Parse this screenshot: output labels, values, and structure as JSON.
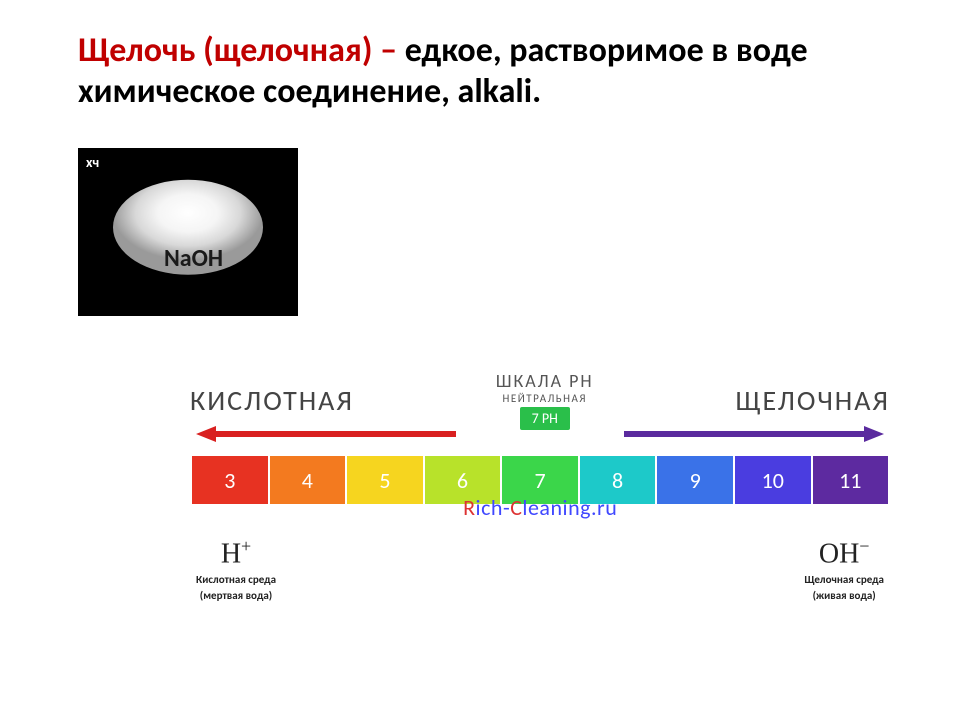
{
  "title": {
    "red_part": "Щелочь (щелочная) – ",
    "black_part": "едкое, растворимое в воде химическое соединение, alkali.",
    "red_color": "#c00000",
    "black_color": "#000000"
  },
  "naoh_image": {
    "corner_tag": "хч",
    "formula": "NaOH"
  },
  "ph_chart": {
    "type": "infographic",
    "header": "ШКАЛА PH",
    "acidic_label": "КИСЛОТНАЯ",
    "alkaline_label": "ЩЕЛОЧНАЯ",
    "neutral_label": "НЕЙТРАЛЬНАЯ",
    "neutral_badge": "7 PH",
    "neutral_badge_bg": "#2abf4a",
    "arrow_acidic_color": "#d92020",
    "arrow_alkaline_color": "#5a2a9e",
    "cells": [
      {
        "value": "3",
        "color": "#e73222"
      },
      {
        "value": "4",
        "color": "#f37a1f"
      },
      {
        "value": "5",
        "color": "#f6d51f"
      },
      {
        "value": "6",
        "color": "#b8e22a"
      },
      {
        "value": "7",
        "color": "#3bd64a"
      },
      {
        "value": "8",
        "color": "#1dc9c9"
      },
      {
        "value": "9",
        "color": "#3a72e8"
      },
      {
        "value": "10",
        "color": "#4a3de0"
      },
      {
        "value": "11",
        "color": "#5d2aa0"
      }
    ],
    "ions": {
      "left": {
        "formula": "H",
        "charge": "+",
        "desc_line1": "Кислотная среда",
        "desc_line2": "(мертвая вода)"
      },
      "right": {
        "formula": "OH",
        "charge": "−",
        "desc_line1": "Щелочная среда",
        "desc_line2": "(живая вода)"
      }
    },
    "footer": {
      "r": "R",
      "mid": "ich-",
      "c": "C",
      "rest": "leaning.ru"
    }
  }
}
